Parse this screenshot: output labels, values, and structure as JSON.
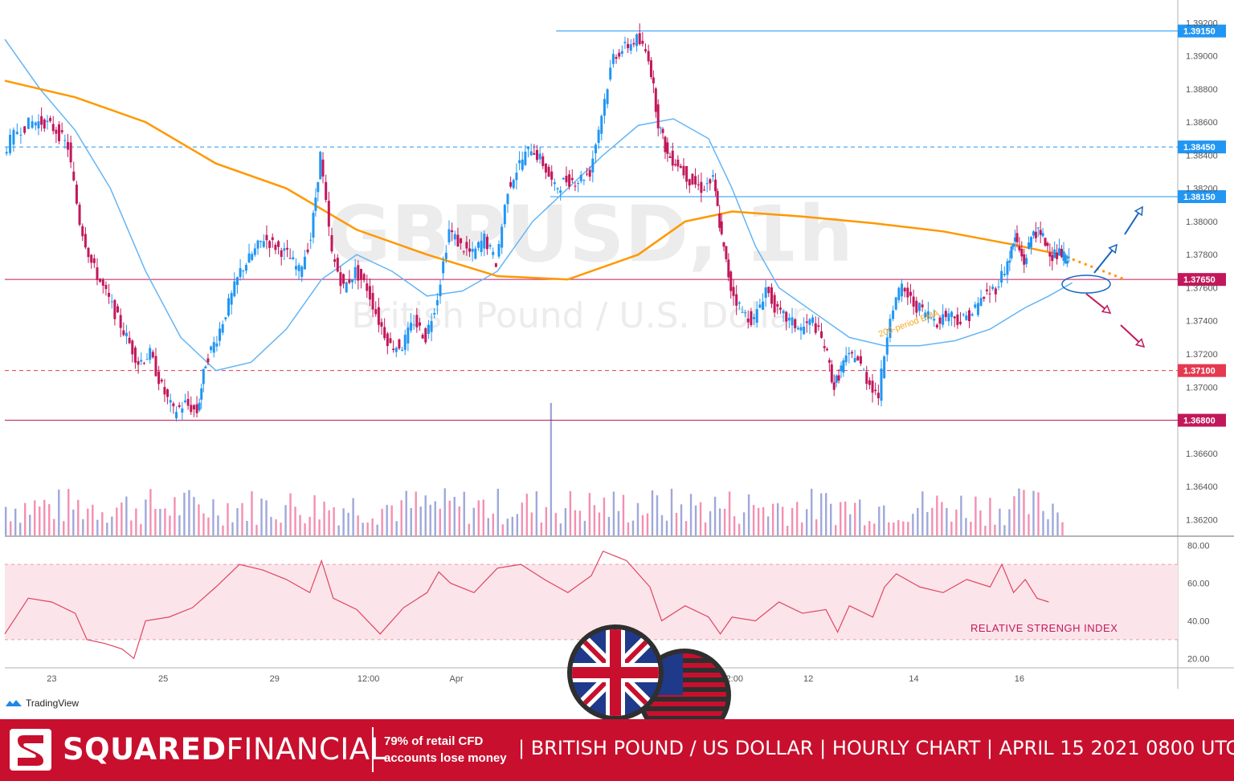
{
  "chart_data": {
    "type": "candlestick",
    "symbol": "GBPUSD, 1h",
    "instrument": "British Pound / U.S. Dollar",
    "ylim": [
      1.361,
      1.3925
    ],
    "y_ticks": [
      "1.39200",
      "1.39000",
      "1.38800",
      "1.38600",
      "1.38400",
      "1.38200",
      "1.38000",
      "1.37800",
      "1.37600",
      "1.37400",
      "1.37200",
      "1.37000",
      "1.36600",
      "1.36400",
      "1.36200"
    ],
    "x_ticks": [
      "23",
      "25",
      "29",
      "12:00",
      "Apr",
      "12:00",
      "12",
      "14",
      "16"
    ],
    "x_tick_positions": [
      0.04,
      0.135,
      0.23,
      0.31,
      0.385,
      0.62,
      0.685,
      0.775,
      0.865
    ],
    "price_levels": [
      {
        "label": "1.39150",
        "value": 1.3915,
        "color": "#2196f3",
        "style": "solid",
        "from": 0.47
      },
      {
        "label": "1.38450",
        "value": 1.3845,
        "color": "#2196f3",
        "style": "dashed",
        "from": 0.0
      },
      {
        "label": "1.38150",
        "value": 1.3815,
        "color": "#2196f3",
        "style": "solid",
        "from": 0.465
      },
      {
        "label": "1.37650",
        "value": 1.3765,
        "color": "#c2185b",
        "style": "solid",
        "from": 0.0
      },
      {
        "label": "1.37100",
        "value": 1.371,
        "color": "#e53950",
        "style": "dashed",
        "from": 0.0
      },
      {
        "label": "1.36800",
        "value": 1.368,
        "color": "#c2185b",
        "style": "solid",
        "from": 0.0
      }
    ],
    "price_path": [
      [
        0.0,
        1.3842
      ],
      [
        0.012,
        1.3855
      ],
      [
        0.025,
        1.386
      ],
      [
        0.035,
        1.386
      ],
      [
        0.045,
        1.3855
      ],
      [
        0.055,
        1.3845
      ],
      [
        0.065,
        1.38
      ],
      [
        0.075,
        1.3775
      ],
      [
        0.085,
        1.376
      ],
      [
        0.095,
        1.3745
      ],
      [
        0.105,
        1.373
      ],
      [
        0.115,
        1.3715
      ],
      [
        0.125,
        1.372
      ],
      [
        0.135,
        1.37
      ],
      [
        0.145,
        1.3685
      ],
      [
        0.155,
        1.369
      ],
      [
        0.165,
        1.3685
      ],
      [
        0.172,
        1.3715
      ],
      [
        0.182,
        1.373
      ],
      [
        0.192,
        1.375
      ],
      [
        0.202,
        1.377
      ],
      [
        0.212,
        1.378
      ],
      [
        0.222,
        1.379
      ],
      [
        0.232,
        1.3785
      ],
      [
        0.242,
        1.378
      ],
      [
        0.252,
        1.377
      ],
      [
        0.262,
        1.379
      ],
      [
        0.27,
        1.384
      ],
      [
        0.28,
        1.378
      ],
      [
        0.29,
        1.376
      ],
      [
        0.3,
        1.377
      ],
      [
        0.31,
        1.376
      ],
      [
        0.32,
        1.374
      ],
      [
        0.33,
        1.3725
      ],
      [
        0.34,
        1.3725
      ],
      [
        0.35,
        1.374
      ],
      [
        0.36,
        1.373
      ],
      [
        0.37,
        1.3755
      ],
      [
        0.38,
        1.3795
      ],
      [
        0.39,
        1.3785
      ],
      [
        0.4,
        1.378
      ],
      [
        0.41,
        1.379
      ],
      [
        0.42,
        1.3775
      ],
      [
        0.43,
        1.382
      ],
      [
        0.44,
        1.3835
      ],
      [
        0.45,
        1.3845
      ],
      [
        0.46,
        1.3835
      ],
      [
        0.47,
        1.382
      ],
      [
        0.48,
        1.3825
      ],
      [
        0.49,
        1.3825
      ],
      [
        0.5,
        1.383
      ],
      [
        0.51,
        1.3865
      ],
      [
        0.52,
        1.39
      ],
      [
        0.53,
        1.3905
      ],
      [
        0.54,
        1.391
      ],
      [
        0.55,
        1.39
      ],
      [
        0.558,
        1.386
      ],
      [
        0.566,
        1.384
      ],
      [
        0.575,
        1.3835
      ],
      [
        0.585,
        1.3825
      ],
      [
        0.595,
        1.382
      ],
      [
        0.605,
        1.3825
      ],
      [
        0.612,
        1.379
      ],
      [
        0.62,
        1.376
      ],
      [
        0.63,
        1.3745
      ],
      [
        0.64,
        1.374
      ],
      [
        0.65,
        1.376
      ],
      [
        0.66,
        1.3745
      ],
      [
        0.67,
        1.374
      ],
      [
        0.68,
        1.3735
      ],
      [
        0.69,
        1.374
      ],
      [
        0.7,
        1.3725
      ],
      [
        0.708,
        1.37
      ],
      [
        0.716,
        1.3715
      ],
      [
        0.726,
        1.372
      ],
      [
        0.736,
        1.3705
      ],
      [
        0.746,
        1.3695
      ],
      [
        0.756,
        1.3745
      ],
      [
        0.766,
        1.376
      ],
      [
        0.776,
        1.375
      ],
      [
        0.786,
        1.3745
      ],
      [
        0.796,
        1.374
      ],
      [
        0.806,
        1.3745
      ],
      [
        0.816,
        1.374
      ],
      [
        0.826,
        1.3745
      ],
      [
        0.836,
        1.3755
      ],
      [
        0.846,
        1.376
      ],
      [
        0.856,
        1.3775
      ],
      [
        0.862,
        1.379
      ],
      [
        0.87,
        1.3775
      ],
      [
        0.878,
        1.3795
      ],
      [
        0.886,
        1.379
      ],
      [
        0.894,
        1.378
      ],
      [
        0.902,
        1.378
      ],
      [
        0.908,
        1.3775
      ]
    ],
    "ema200_path": [
      [
        0.0,
        1.3885
      ],
      [
        0.06,
        1.3875
      ],
      [
        0.12,
        1.386
      ],
      [
        0.18,
        1.3835
      ],
      [
        0.24,
        1.382
      ],
      [
        0.3,
        1.3795
      ],
      [
        0.36,
        1.378
      ],
      [
        0.42,
        1.3767
      ],
      [
        0.48,
        1.3765
      ],
      [
        0.54,
        1.378
      ],
      [
        0.58,
        1.38
      ],
      [
        0.62,
        1.3806
      ],
      [
        0.68,
        1.3803
      ],
      [
        0.74,
        1.3799
      ],
      [
        0.8,
        1.3794
      ],
      [
        0.86,
        1.3786
      ],
      [
        0.9,
        1.378
      ]
    ],
    "ema200_projection": [
      [
        0.9,
        1.378
      ],
      [
        0.955,
        1.3765
      ]
    ],
    "ema_fast_path": [
      [
        0.0,
        1.391
      ],
      [
        0.03,
        1.388
      ],
      [
        0.06,
        1.3855
      ],
      [
        0.09,
        1.382
      ],
      [
        0.12,
        1.377
      ],
      [
        0.15,
        1.373
      ],
      [
        0.18,
        1.371
      ],
      [
        0.21,
        1.3715
      ],
      [
        0.24,
        1.3735
      ],
      [
        0.27,
        1.3765
      ],
      [
        0.3,
        1.378
      ],
      [
        0.33,
        1.377
      ],
      [
        0.36,
        1.3755
      ],
      [
        0.39,
        1.3758
      ],
      [
        0.42,
        1.377
      ],
      [
        0.45,
        1.38
      ],
      [
        0.48,
        1.382
      ],
      [
        0.51,
        1.384
      ],
      [
        0.54,
        1.3858
      ],
      [
        0.57,
        1.3862
      ],
      [
        0.6,
        1.385
      ],
      [
        0.62,
        1.382
      ],
      [
        0.64,
        1.3785
      ],
      [
        0.66,
        1.376
      ],
      [
        0.69,
        1.3745
      ],
      [
        0.72,
        1.373
      ],
      [
        0.75,
        1.3725
      ],
      [
        0.78,
        1.3725
      ],
      [
        0.81,
        1.3728
      ],
      [
        0.84,
        1.3735
      ],
      [
        0.87,
        1.3748
      ],
      [
        0.89,
        1.3755
      ],
      [
        0.91,
        1.3763
      ]
    ],
    "volume_bars_count": 220,
    "rsi": {
      "ylim": [
        15,
        85
      ],
      "ticks": [
        "80.00",
        "60.00",
        "40.00",
        "20.00"
      ],
      "band": [
        30,
        70
      ],
      "label": "RELATIVE STRENGH INDEX",
      "path": [
        [
          0.0,
          33
        ],
        [
          0.02,
          52
        ],
        [
          0.04,
          50
        ],
        [
          0.06,
          44
        ],
        [
          0.07,
          30
        ],
        [
          0.085,
          28
        ],
        [
          0.1,
          25
        ],
        [
          0.11,
          20
        ],
        [
          0.12,
          40
        ],
        [
          0.14,
          42
        ],
        [
          0.16,
          47
        ],
        [
          0.18,
          58
        ],
        [
          0.2,
          70
        ],
        [
          0.22,
          67
        ],
        [
          0.24,
          62
        ],
        [
          0.26,
          55
        ],
        [
          0.27,
          72
        ],
        [
          0.28,
          52
        ],
        [
          0.3,
          46
        ],
        [
          0.32,
          33
        ],
        [
          0.34,
          47
        ],
        [
          0.36,
          55
        ],
        [
          0.37,
          66
        ],
        [
          0.38,
          60
        ],
        [
          0.4,
          55
        ],
        [
          0.42,
          68
        ],
        [
          0.44,
          70
        ],
        [
          0.46,
          62
        ],
        [
          0.48,
          55
        ],
        [
          0.5,
          64
        ],
        [
          0.51,
          77
        ],
        [
          0.53,
          72
        ],
        [
          0.55,
          58
        ],
        [
          0.56,
          40
        ],
        [
          0.58,
          48
        ],
        [
          0.6,
          42
        ],
        [
          0.61,
          33
        ],
        [
          0.62,
          42
        ],
        [
          0.64,
          40
        ],
        [
          0.66,
          50
        ],
        [
          0.68,
          44
        ],
        [
          0.7,
          46
        ],
        [
          0.71,
          34
        ],
        [
          0.72,
          48
        ],
        [
          0.74,
          42
        ],
        [
          0.75,
          58
        ],
        [
          0.76,
          65
        ],
        [
          0.78,
          58
        ],
        [
          0.8,
          55
        ],
        [
          0.82,
          62
        ],
        [
          0.84,
          58
        ],
        [
          0.85,
          70
        ],
        [
          0.86,
          55
        ],
        [
          0.87,
          62
        ],
        [
          0.88,
          52
        ],
        [
          0.89,
          50
        ]
      ]
    },
    "watermark": {
      "symbol": "GBPUSD, 1h",
      "name": "British Pound / U.S. Dollar"
    },
    "annotation_ema": "200-period EMA",
    "colors": {
      "up": "#2196f3",
      "down": "#c2185b",
      "ema200": "#ff9800",
      "ema_fast": "#64b5f6",
      "rsi": "#e04560",
      "rsi_band": "#fbe5ea"
    }
  },
  "branding": {
    "tradingview": "TradingView",
    "company_bold": "SQUARED",
    "company_light": "FINANCIAL",
    "risk_line1": "79% of retail CFD",
    "risk_line2": "accounts lose money",
    "title": "| BRITISH POUND / US DOLLAR | HOURLY CHART | APRIL 15 2021 0800 UTC |"
  }
}
